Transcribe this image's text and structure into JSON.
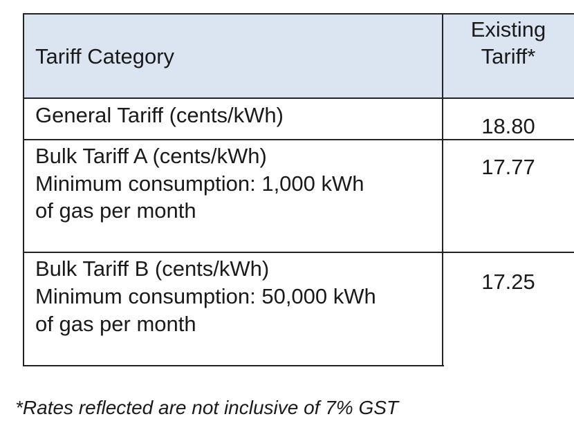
{
  "table": {
    "headers": {
      "category": "Tariff Category",
      "existing_line1": "Existing",
      "existing_line2": "Tariff*"
    },
    "rows": [
      {
        "category_lines": [
          "General Tariff (cents/kWh)"
        ],
        "existing": "18.80"
      },
      {
        "category_lines": [
          "Bulk Tariff A (cents/kWh)",
          "Minimum consumption: 1,000 kWh",
          "of gas per month"
        ],
        "existing": "17.77"
      },
      {
        "category_lines": [
          "Bulk Tariff B (cents/kWh)",
          "Minimum consumption: 50,000 kWh",
          "of gas per month"
        ],
        "existing": "17.25"
      }
    ]
  },
  "footnote": "*Rates reflected are not inclusive of 7% GST"
}
